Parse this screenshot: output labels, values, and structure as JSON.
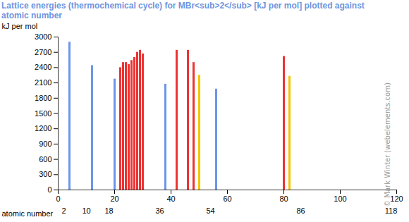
{
  "chart_data": {
    "type": "bar",
    "title": "Lattice energies (thermochemical cycle) for MBr<sub>2</sub> [kJ per mol] plotted against atomic number",
    "ylabel": "kJ per mol",
    "xlabel": "atomic number",
    "credit": "© Mark Winter (webelements.com)",
    "x": [
      4,
      12,
      20,
      22,
      23,
      24,
      25,
      26,
      27,
      28,
      29,
      30,
      38,
      42,
      46,
      48,
      50,
      56,
      80,
      82
    ],
    "values": [
      2900,
      2440,
      2176,
      2400,
      2500,
      2500,
      2460,
      2540,
      2600,
      2700,
      2740,
      2670,
      2075,
      2740,
      2740,
      2500,
      2250,
      1980,
      2620,
      2230
    ],
    "colors": [
      "#6d95e8",
      "#6d95e8",
      "#6d95e8",
      "#ee3333",
      "#ee3333",
      "#ee3333",
      "#ee3333",
      "#ee3333",
      "#ee3333",
      "#ee3333",
      "#ee3333",
      "#ee3333",
      "#6d95e8",
      "#ee3333",
      "#ee3333",
      "#ee3333",
      "#f5c400",
      "#6d95e8",
      "#ee3333",
      "#f5c400"
    ],
    "xlim": [
      0,
      120
    ],
    "xticks": [
      0,
      20,
      40,
      60,
      80,
      100,
      120
    ],
    "xticks_secondary": [
      2,
      10,
      18,
      36,
      54,
      86,
      118
    ],
    "ylim": [
      0,
      3000
    ],
    "yticks": [
      0,
      300,
      600,
      900,
      1200,
      1500,
      1800,
      2100,
      2400,
      2700,
      3000
    ],
    "grid": false
  }
}
